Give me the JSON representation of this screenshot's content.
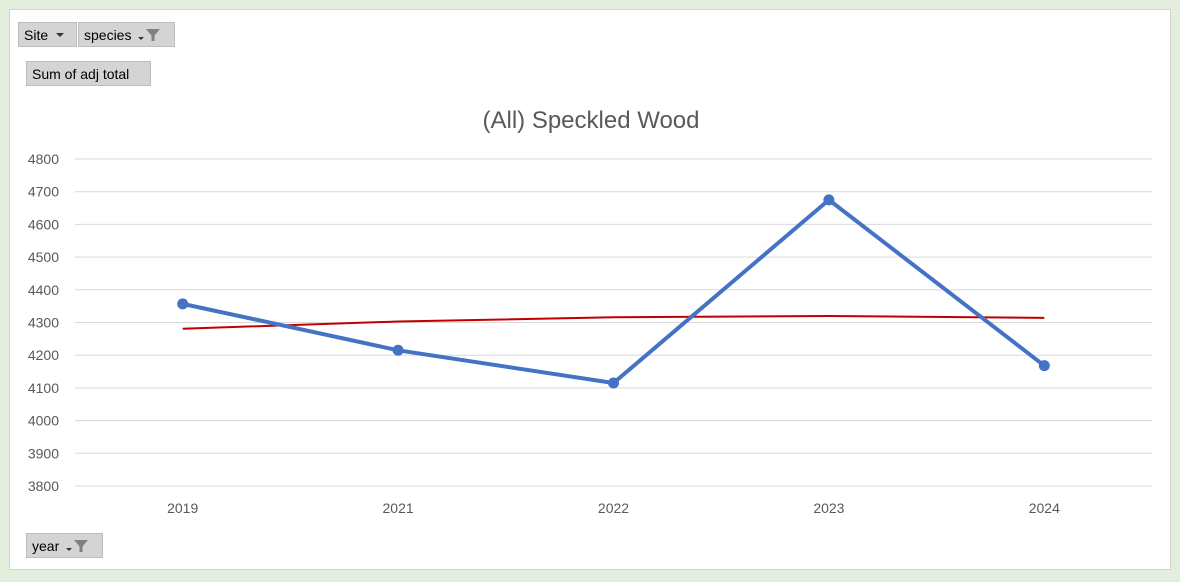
{
  "filters": {
    "site_label": "Site",
    "species_label": "species",
    "values_label": "Sum of adj total",
    "axis_field_label": "year"
  },
  "colors": {
    "series": "#4472c4",
    "trendline": "#c00000",
    "grid": "#d9d9d9",
    "text": "#595959"
  },
  "icons": [
    "chevron-down-icon",
    "filter-icon"
  ],
  "chart_data": {
    "type": "line",
    "title": "(All) Speckled Wood",
    "xlabel": "",
    "ylabel": "",
    "categories": [
      "2019",
      "2021",
      "2022",
      "2023",
      "2024"
    ],
    "series": [
      {
        "values": [
          4357,
          4215,
          4115,
          4675,
          4168
        ]
      }
    ],
    "trendline": {
      "type": "polynomial",
      "values": [
        4281,
        4303,
        4316,
        4320,
        4314
      ]
    },
    "ylim": [
      3800,
      4800
    ],
    "yticks": [
      3800,
      3900,
      4000,
      4100,
      4200,
      4300,
      4400,
      4500,
      4600,
      4700,
      4800
    ],
    "grid": true,
    "legend": "none"
  }
}
